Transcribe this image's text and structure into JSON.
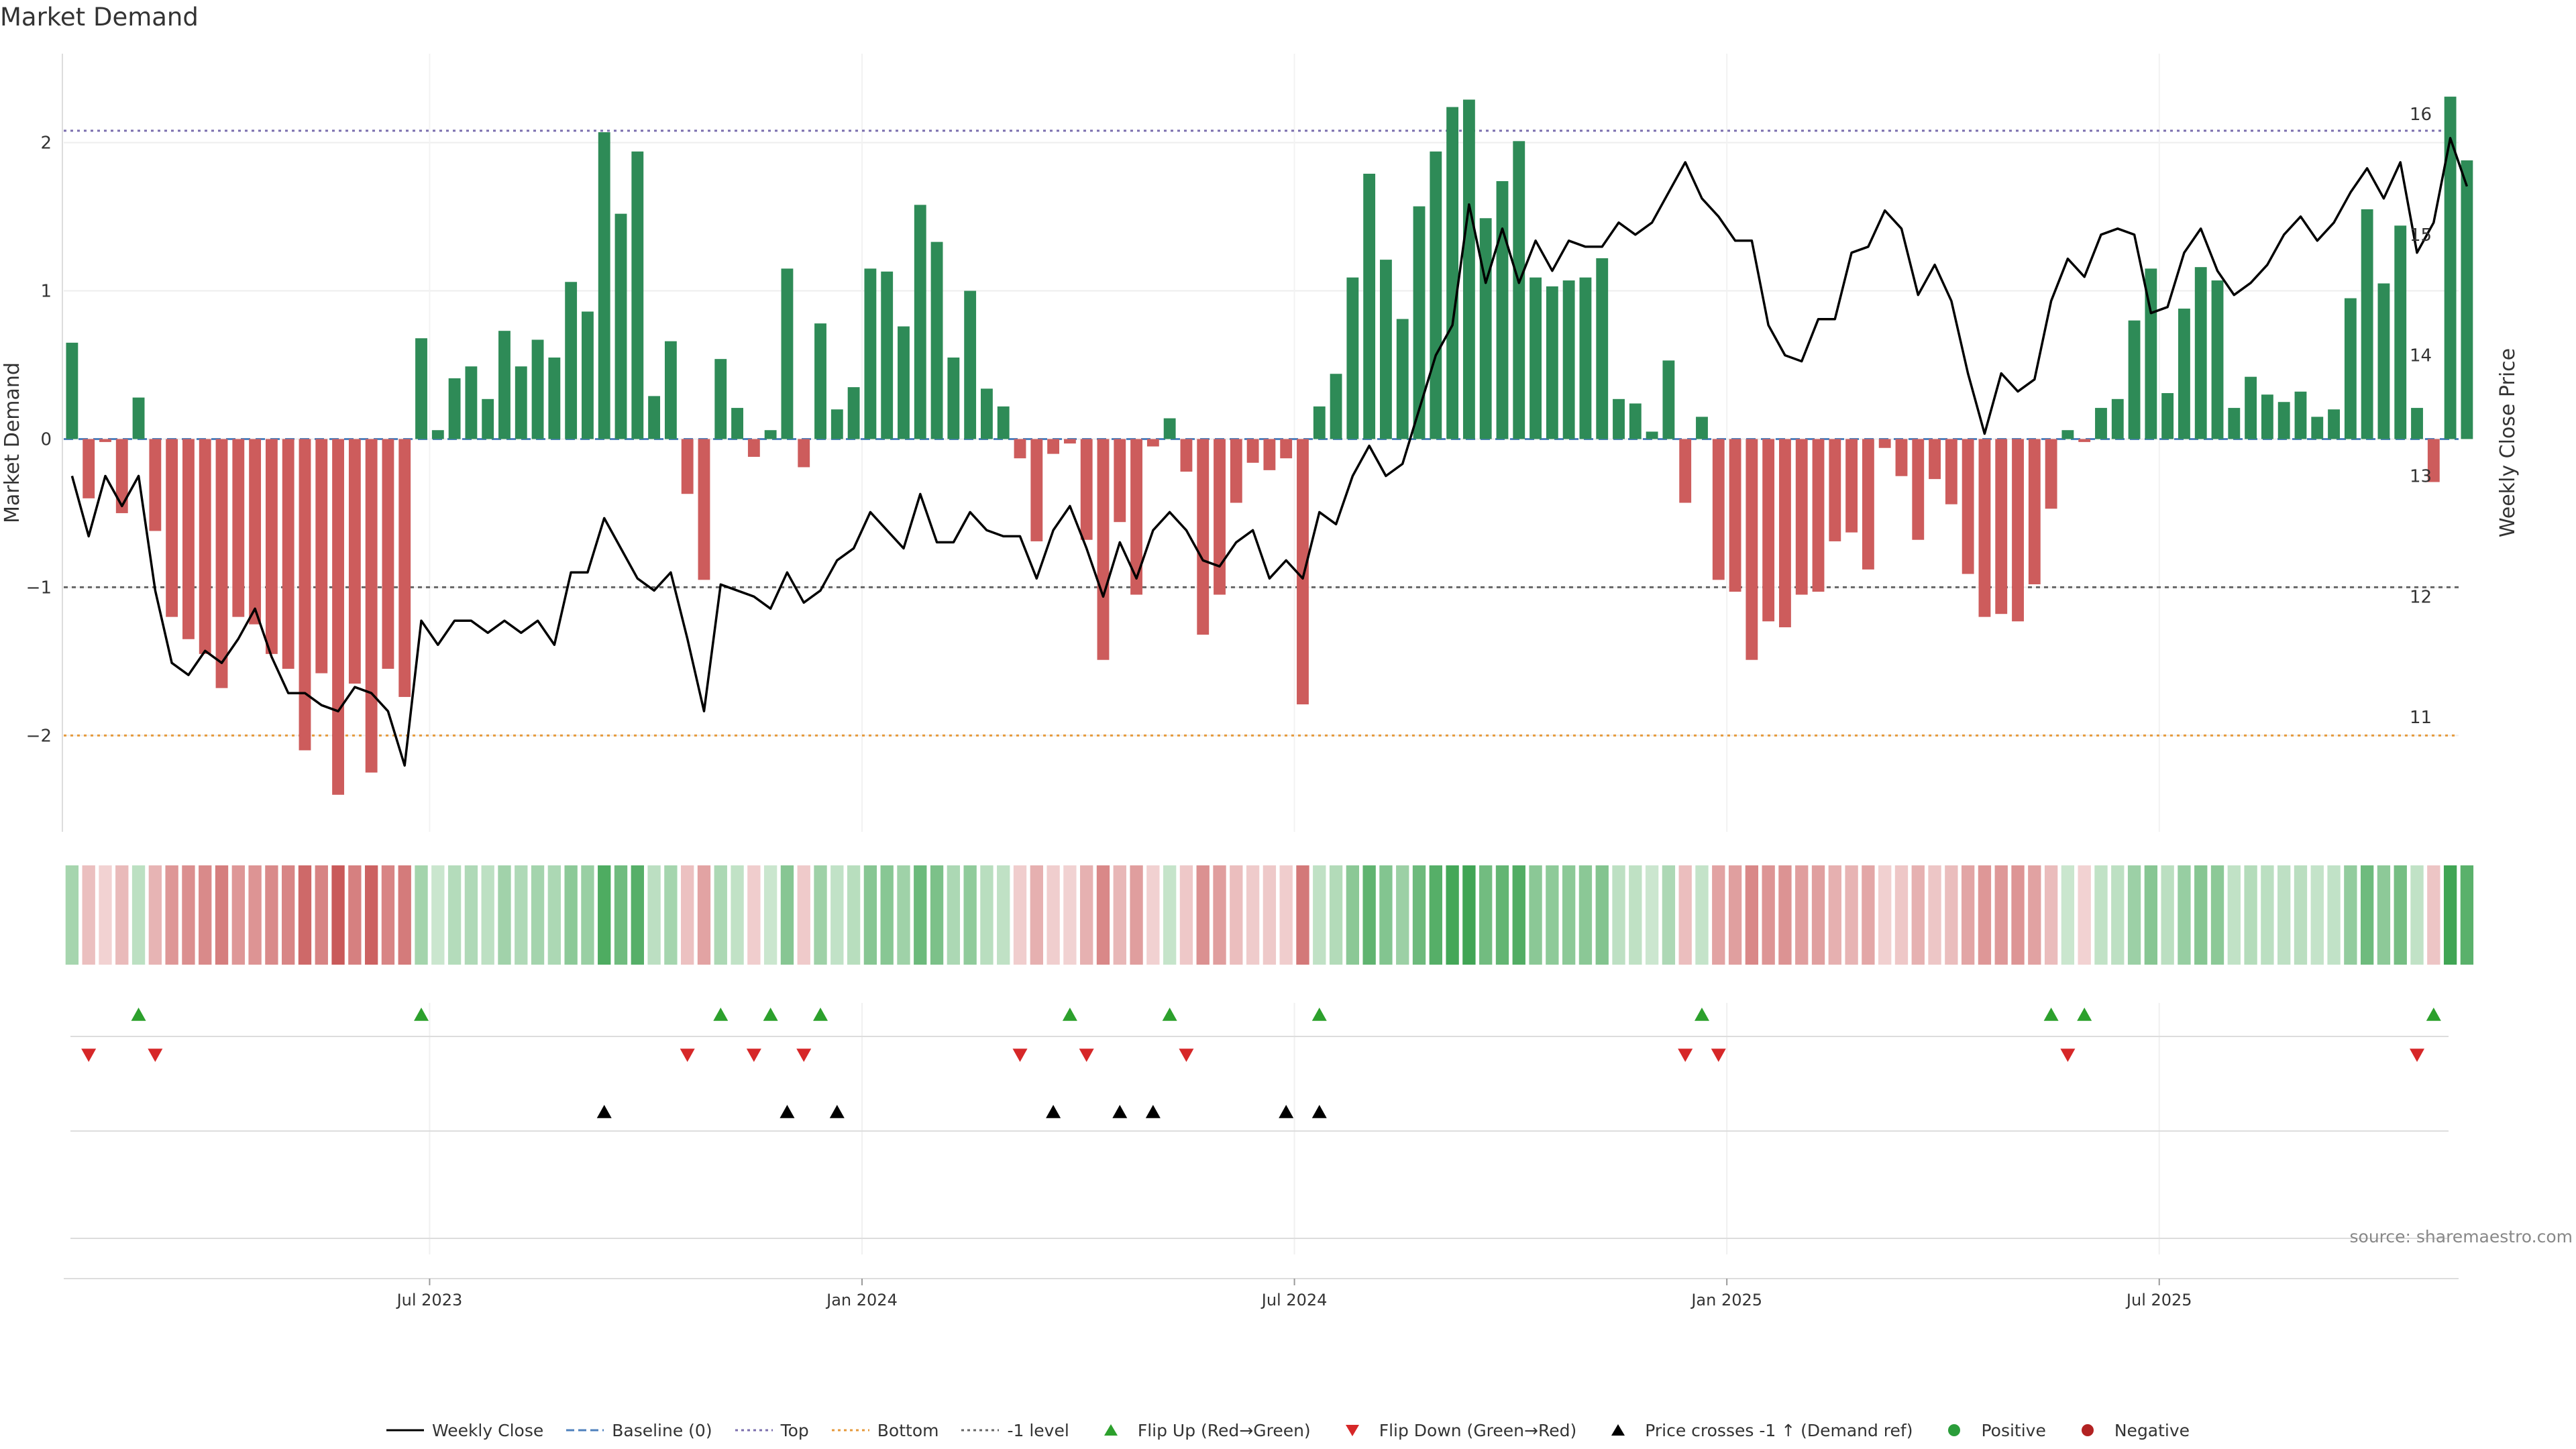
{
  "title": "Market Demand",
  "source": "source: sharemaestro.com",
  "colors": {
    "positive": "#2e8b57",
    "negative": "#cd5c5c",
    "flip_up": "#2ca02c",
    "flip_down": "#d62728",
    "cross": "#000000",
    "top": "#7b6fae",
    "bottom": "#e69a3c",
    "minus_one": "#666666",
    "baseline": "#4f81bd",
    "positive_dot": "#2a9d3a",
    "negative_dot": "#b22222"
  },
  "legend": [
    {
      "key": "weekly_close",
      "label": "Weekly Close",
      "symbol": "line-solid",
      "color": "#000000"
    },
    {
      "key": "baseline",
      "label": "Baseline (0)",
      "symbol": "line-dashed",
      "color": "#4f81bd"
    },
    {
      "key": "top",
      "label": "Top",
      "symbol": "line-dotted",
      "color": "#7b6fae"
    },
    {
      "key": "bottom",
      "label": "Bottom",
      "symbol": "line-dotted",
      "color": "#e69a3c"
    },
    {
      "key": "minus_one",
      "label": "-1 level",
      "symbol": "line-dotted",
      "color": "#666666"
    },
    {
      "key": "flip_up",
      "label": "Flip Up (Red→Green)",
      "symbol": "triangle-up",
      "color": "#2ca02c"
    },
    {
      "key": "flip_down",
      "label": "Flip Down (Green→Red)",
      "symbol": "triangle-down",
      "color": "#d62728"
    },
    {
      "key": "cross",
      "label": "Price crosses -1 ↑ (Demand ref)",
      "symbol": "triangle-up",
      "color": "#000000"
    },
    {
      "key": "positive",
      "label": "Positive",
      "symbol": "dot",
      "color": "#2a9d3a"
    },
    {
      "key": "negative",
      "label": "Negative",
      "symbol": "dot",
      "color": "#b22222"
    }
  ],
  "chart_data": {
    "type": "bar",
    "title": "Market Demand",
    "ylabel": "Market Demand",
    "y2label": "Weekly Close Price",
    "ylim": [
      -2.65,
      2.6
    ],
    "y2lim": [
      10.05,
      16.5
    ],
    "yticks": [
      -2,
      -1,
      0,
      1,
      2
    ],
    "yticklabels": [
      "−2",
      "−1",
      "0",
      "1",
      "2"
    ],
    "y2ticks": [
      11,
      12,
      13,
      14,
      15,
      16
    ],
    "y2ticklabels": [
      "11",
      "12",
      "13",
      "14",
      "15",
      "16"
    ],
    "reference_lines": {
      "top": 2.08,
      "bottom": -2.0,
      "minus_one": -1.0,
      "baseline": 0
    },
    "xticks": [
      {
        "index": 22,
        "label": "Jul 2023"
      },
      {
        "index": 48,
        "label": "Jan 2024"
      },
      {
        "index": 74,
        "label": "Jul 2024"
      },
      {
        "index": 100,
        "label": "Jan 2025"
      },
      {
        "index": 126,
        "label": "Jul 2025"
      }
    ],
    "weeks": 144,
    "market_demand": [
      0.65,
      -0.4,
      -0.02,
      -0.5,
      0.28,
      -0.62,
      -1.2,
      -1.35,
      -1.45,
      -1.68,
      -1.2,
      -1.25,
      -1.45,
      -1.55,
      -2.1,
      -1.58,
      -2.4,
      -1.65,
      -2.25,
      -1.55,
      -1.74,
      0.68,
      0.06,
      0.41,
      0.49,
      0.27,
      0.73,
      0.49,
      0.67,
      0.55,
      1.06,
      0.86,
      2.07,
      1.52,
      1.94,
      0.29,
      0.66,
      -0.37,
      -0.95,
      0.54,
      0.21,
      -0.12,
      0.06,
      1.15,
      -0.19,
      0.78,
      0.2,
      0.35,
      1.15,
      1.13,
      0.76,
      1.58,
      1.33,
      0.55,
      1.0,
      0.34,
      0.22,
      -0.13,
      -0.69,
      -0.1,
      -0.03,
      -0.68,
      -1.49,
      -0.56,
      -1.05,
      -0.05,
      0.14,
      -0.22,
      -1.32,
      -1.05,
      -0.43,
      -0.16,
      -0.21,
      -0.13,
      -1.79,
      0.22,
      0.44,
      1.09,
      1.79,
      1.21,
      0.81,
      1.57,
      1.94,
      2.24,
      2.29,
      1.49,
      1.74,
      2.01,
      1.09,
      1.03,
      1.07,
      1.09,
      1.22,
      0.27,
      0.24,
      0.05,
      0.53,
      -0.43,
      0.15,
      -0.95,
      -1.03,
      -1.49,
      -1.23,
      -1.27,
      -1.05,
      -1.03,
      -0.69,
      -0.63,
      -0.88,
      -0.06,
      -0.25,
      -0.68,
      -0.27,
      -0.44,
      -0.91,
      -1.2,
      -1.18,
      -1.23,
      -0.98,
      -0.47,
      0.06,
      -0.02,
      0.21,
      0.27,
      0.8,
      1.15,
      0.31,
      0.88,
      1.16,
      1.07,
      0.21,
      0.42,
      0.3,
      0.25,
      0.32,
      0.15,
      0.2,
      0.95,
      1.55,
      1.05,
      1.44,
      0.21,
      -0.29,
      2.31,
      1.88
    ],
    "weekly_close": [
      13.0,
      12.5,
      13.0,
      12.75,
      13.0,
      12.05,
      11.45,
      11.35,
      11.55,
      11.45,
      11.65,
      11.9,
      11.5,
      11.2,
      11.2,
      11.1,
      11.05,
      11.25,
      11.2,
      11.05,
      10.6,
      11.8,
      11.6,
      11.8,
      11.8,
      11.7,
      11.8,
      11.7,
      11.8,
      11.6,
      12.2,
      12.2,
      12.65,
      12.4,
      12.15,
      12.05,
      12.2,
      11.65,
      11.05,
      12.1,
      12.05,
      12.0,
      11.9,
      12.2,
      11.95,
      12.05,
      12.3,
      12.4,
      12.7,
      12.55,
      12.4,
      12.85,
      12.45,
      12.45,
      12.7,
      12.55,
      12.5,
      12.5,
      12.15,
      12.55,
      12.75,
      12.4,
      12.0,
      12.45,
      12.15,
      12.55,
      12.7,
      12.55,
      12.3,
      12.25,
      12.45,
      12.55,
      12.15,
      12.3,
      12.15,
      12.7,
      12.6,
      13.0,
      13.25,
      13.0,
      13.1,
      13.55,
      14.0,
      14.25,
      15.25,
      14.6,
      15.05,
      14.6,
      14.95,
      14.7,
      14.95,
      14.9,
      14.9,
      15.1,
      15.0,
      15.1,
      15.35,
      15.6,
      15.3,
      15.15,
      14.95,
      14.95,
      14.25,
      14.0,
      13.95,
      14.3,
      14.3,
      14.85,
      14.9,
      15.2,
      15.05,
      14.5,
      14.75,
      14.45,
      13.85,
      13.35,
      13.85,
      13.7,
      13.8,
      14.45,
      14.8,
      14.65,
      15.0,
      15.05,
      15.0,
      14.35,
      14.4,
      14.85,
      15.05,
      14.7,
      14.5,
      14.6,
      14.75,
      15.0,
      15.15,
      14.95,
      15.1,
      15.35,
      15.55,
      15.3,
      15.6,
      14.85,
      15.1,
      15.8,
      15.4
    ],
    "color_strip": "Weekly demand heat strip: green shades for positive values, red shades for negative values, intensity proportional to magnitude",
    "flip_up_weeks": [
      4,
      21,
      39,
      42,
      45,
      60,
      66,
      75,
      98,
      119,
      121,
      142
    ],
    "flip_down_weeks": [
      1,
      5,
      37,
      41,
      44,
      57,
      61,
      67,
      97,
      99,
      120,
      141
    ],
    "price_cross_weeks": [
      32,
      43,
      46,
      59,
      63,
      65,
      73,
      75
    ]
  }
}
